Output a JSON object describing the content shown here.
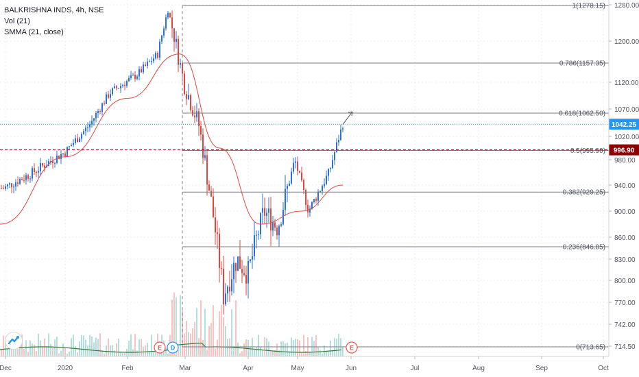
{
  "legend": {
    "symbol_line": "BALKRISHNA INDS, 4h, NSE",
    "volume_line": "Vol (21)",
    "smma_line": "SMMA (21, close)"
  },
  "colors": {
    "up": "#2a6fdb",
    "down": "#e0463f",
    "smma": "#e0463f",
    "volume_ma": "#2e7d32",
    "last_price_bg": "#2196f3",
    "marker_price_bg": "#8b0000",
    "fib_line": "#787b86",
    "grid": "#e9ecf2"
  },
  "chart_data": {
    "type": "candlestick",
    "symbol": "BALKRISHNA INDS",
    "timeframe": "4h",
    "exchange": "NSE",
    "x_axis_ticks": [
      "Dec",
      "2020",
      "Feb",
      "Mar",
      "Apr",
      "May",
      "Jun",
      "Jul",
      "Aug",
      "Sep",
      "Oct"
    ],
    "y_axis_ticks": [
      1280.0,
      1200.0,
      1120.0,
      1070.0,
      1020.0,
      980.0,
      940.0,
      900.0,
      860.0,
      830.0,
      800.0,
      770.0,
      742.0,
      714.5
    ],
    "y_axis_tick_labels": [
      "1280.00",
      "1200.00",
      "1120.00",
      "1070.00",
      "1020.00",
      "980.00",
      "940.00",
      "900.00",
      "860.00",
      "830.00",
      "800.00",
      "770.00",
      "742.00",
      "714.50"
    ],
    "price_labels": [
      {
        "value": 1042.25,
        "label": "1042.25",
        "role": "last_price"
      },
      {
        "value": 996.9,
        "label": "996.90",
        "role": "horizontal_line"
      }
    ],
    "fibonacci_levels": [
      {
        "ratio": 1,
        "price": 1278.15,
        "label": "1(1278.15)"
      },
      {
        "ratio": 0.786,
        "price": 1157.35,
        "label": "0.786(1157.35)"
      },
      {
        "ratio": 0.618,
        "price": 1062.5,
        "label": "0.618(1062.50)"
      },
      {
        "ratio": 0.5,
        "price": 995.9,
        "label": "0.5(995.90)"
      },
      {
        "ratio": 0.382,
        "price": 929.25,
        "label": "0.382(929.25)"
      },
      {
        "ratio": 0.236,
        "price": 846.85,
        "label": "0.236(846.85)"
      },
      {
        "ratio": 0,
        "price": 713.65,
        "label": "0(713.65)"
      }
    ],
    "close_path": [
      {
        "t": "Dec",
        "close": 935
      },
      {
        "t": "mid-Dec",
        "close": 958
      },
      {
        "t": "2020",
        "close": 993
      },
      {
        "t": "mid-Jan",
        "close": 1040
      },
      {
        "t": "late-Jan",
        "close": 1100
      },
      {
        "t": "early-Feb",
        "close": 1135
      },
      {
        "t": "mid-Feb",
        "close": 1175
      },
      {
        "t": "peak-Feb",
        "close": 1270
      },
      {
        "t": "Mar",
        "close": 1120
      },
      {
        "t": "early-Mar",
        "close": 1040
      },
      {
        "t": "mid-Mar",
        "close": 900
      },
      {
        "t": "late-Mar",
        "close": 780
      },
      {
        "t": "end-Mar",
        "close": 830
      },
      {
        "t": "Apr",
        "close": 810
      },
      {
        "t": "mid-Apr",
        "close": 900
      },
      {
        "t": "late-Apr",
        "close": 875
      },
      {
        "t": "May",
        "close": 980
      },
      {
        "t": "mid-May",
        "close": 900
      },
      {
        "t": "late-May",
        "close": 960
      },
      {
        "t": "end-May",
        "close": 1042.25
      }
    ],
    "smma": [
      {
        "t": "Dec",
        "value": 880
      },
      {
        "t": "2020",
        "value": 985
      },
      {
        "t": "Feb",
        "value": 1090
      },
      {
        "t": "Mar",
        "value": 1175
      },
      {
        "t": "mid-Mar",
        "value": 1000
      },
      {
        "t": "Apr",
        "value": 880
      },
      {
        "t": "May",
        "value": 900
      },
      {
        "t": "end-May",
        "value": 940
      }
    ],
    "events": [
      {
        "label": "E",
        "near": "Feb"
      },
      {
        "label": "D",
        "near": "Feb"
      },
      {
        "label": "E",
        "near": "Jun"
      }
    ]
  }
}
